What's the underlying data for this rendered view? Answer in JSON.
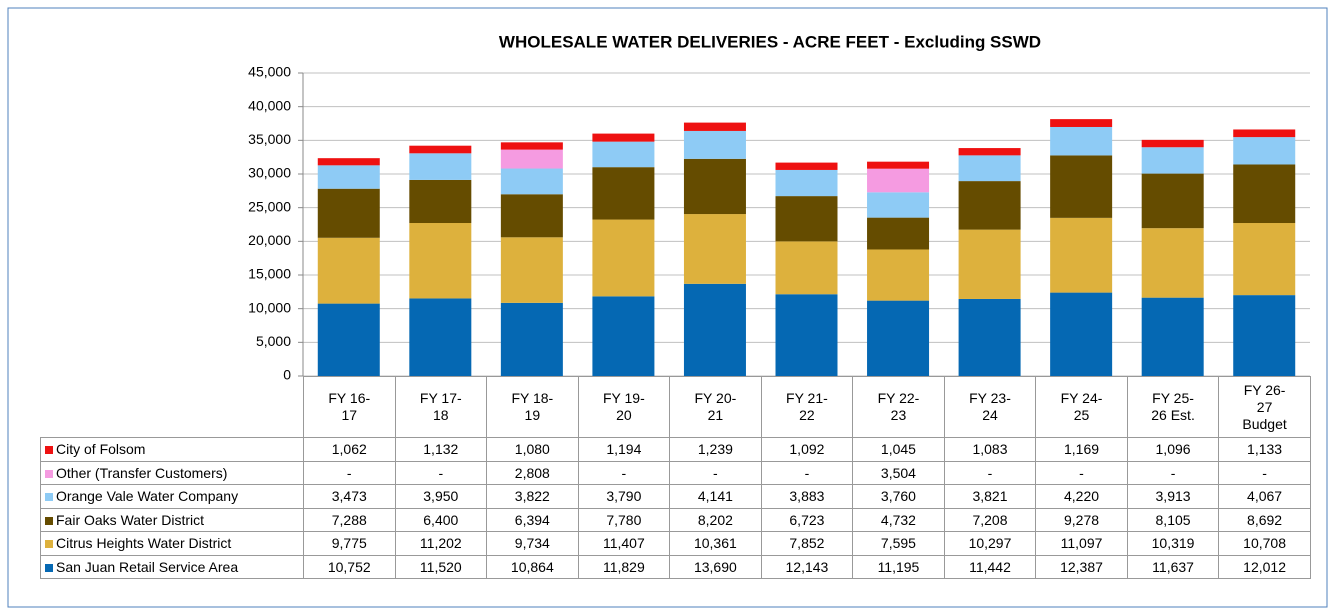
{
  "chart_data": {
    "type": "stacked_bar",
    "title": "WHOLESALE WATER DELIVERIES - ACRE FEET - Excluding SSWD",
    "categories": [
      "FY 16-17",
      "FY 17-18",
      "FY 18-19",
      "FY 19-20",
      "FY 20-21",
      "FY 21-22",
      "FY 22-23",
      "FY 23-24",
      "FY 24-25",
      "FY 25-26 Est.",
      "FY 26-27 Budget"
    ],
    "ylim": [
      0,
      45000
    ],
    "yticks": [
      0,
      {
        "value": 5000,
        "label": "5,000"
      },
      {
        "value": 10000,
        "label": "10,000"
      },
      {
        "value": 15000,
        "label": "15,000"
      },
      {
        "value": 20000,
        "label": "20,000"
      },
      {
        "value": 25000,
        "label": "25,000"
      },
      {
        "value": 30000,
        "label": "30,000"
      },
      {
        "value": 35000,
        "label": "35,000"
      },
      {
        "value": 40000,
        "label": "40,000"
      },
      {
        "value": 45000,
        "label": "45,000"
      }
    ],
    "grid": true,
    "series": [
      {
        "name": "San Juan Retail Service Area",
        "color": "#0568b3",
        "values": [
          10752,
          11520,
          10864,
          11829,
          13690,
          12143,
          11195,
          11442,
          12387,
          11637,
          12012
        ],
        "value_labels": [
          "10,752",
          "11,520",
          "10,864",
          "11,829",
          "13,690",
          "12,143",
          "11,195",
          "11,442",
          "12,387",
          "11,637",
          "12,012"
        ]
      },
      {
        "name": "Citrus Heights Water District",
        "color": "#ddb13d",
        "values": [
          9775,
          11202,
          9734,
          11407,
          10361,
          7852,
          7595,
          10297,
          11097,
          10319,
          10708
        ],
        "value_labels": [
          "9,775",
          "11,202",
          "9,734",
          "11,407",
          "10,361",
          "7,852",
          "7,595",
          "10,297",
          "11,097",
          "10,319",
          "10,708"
        ]
      },
      {
        "name": "Fair Oaks Water District",
        "color": "#654c00",
        "values": [
          7288,
          6400,
          6394,
          7780,
          8202,
          6723,
          4732,
          7208,
          9278,
          8105,
          8692
        ],
        "value_labels": [
          "7,288",
          "6,400",
          "6,394",
          "7,780",
          "8,202",
          "6,723",
          "4,732",
          "7,208",
          "9,278",
          "8,105",
          "8,692"
        ]
      },
      {
        "name": "Orange Vale Water Company",
        "color": "#8ecbf5",
        "values": [
          3473,
          3950,
          3822,
          3790,
          4141,
          3883,
          3760,
          3821,
          4220,
          3913,
          4067
        ],
        "value_labels": [
          "3,473",
          "3,950",
          "3,822",
          "3,790",
          "4,141",
          "3,883",
          "3,760",
          "3,821",
          "4,220",
          "3,913",
          "4,067"
        ]
      },
      {
        "name": "Other (Transfer Customers)",
        "color": "#f59be1",
        "values": [
          null,
          null,
          2808,
          null,
          null,
          null,
          3504,
          null,
          null,
          null,
          null
        ],
        "value_labels": [
          "-",
          "-",
          "2,808",
          "-",
          "-",
          "-",
          "3,504",
          "-",
          "-",
          "-",
          "-"
        ]
      },
      {
        "name": "City of Folsom",
        "color": "#ee1111",
        "values": [
          1062,
          1132,
          1080,
          1194,
          1239,
          1092,
          1045,
          1083,
          1169,
          1096,
          1133
        ],
        "value_labels": [
          "1,062",
          "1,132",
          "1,080",
          "1,194",
          "1,239",
          "1,092",
          "1,045",
          "1,083",
          "1,169",
          "1,096",
          "1,133"
        ]
      }
    ]
  }
}
